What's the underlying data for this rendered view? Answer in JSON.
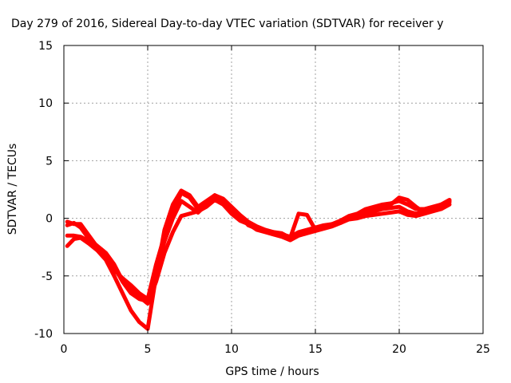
{
  "chart_data": {
    "type": "line",
    "title": "Day 279 of 2016, Sidereal Day-to-day VTEC variation (SDTVAR) for receiver y",
    "xlabel": "GPS time / hours",
    "ylabel": "SDTVAR / TECUs",
    "xlim": [
      0,
      25
    ],
    "ylim": [
      -10,
      15
    ],
    "x_ticks": [
      "0",
      "5",
      "10",
      "15",
      "20",
      "25"
    ],
    "y_ticks": [
      "-10",
      "-5",
      "0",
      "5",
      "10",
      "15"
    ],
    "grid": true,
    "legend": "none",
    "line_color": "#ff0000",
    "series": [
      {
        "x": [
          0.2,
          0.6,
          1.0,
          1.5,
          2.0,
          2.5,
          3.0,
          3.5,
          4.0,
          4.5,
          5.0,
          5.5,
          6.0,
          6.5,
          7.0,
          7.5,
          8.0,
          8.5,
          9.0,
          9.5,
          10.0,
          10.5,
          11.0,
          11.5,
          12.0,
          12.5,
          13.0,
          13.5,
          14.0,
          14.5,
          15.0,
          15.5,
          16.0,
          16.5,
          17.0,
          17.5,
          18.0,
          18.5,
          19.0,
          19.5,
          20.0,
          20.5,
          21.0,
          21.5,
          22.0,
          22.5,
          23.0
        ],
        "y": [
          -0.3,
          -0.5,
          -0.5,
          -1.5,
          -2.5,
          -3.2,
          -4.2,
          -5.5,
          -6.5,
          -7.0,
          -7.2,
          -4.5,
          -2.0,
          0.0,
          1.5,
          1.0,
          0.5,
          1.2,
          1.8,
          1.4,
          0.5,
          0.0,
          -0.4,
          -0.8,
          -1.0,
          -1.2,
          -1.4,
          -1.6,
          -1.2,
          -1.0,
          -0.8,
          -0.6,
          -0.5,
          -0.3,
          0.0,
          0.2,
          0.5,
          0.6,
          0.8,
          0.9,
          1.0,
          0.6,
          0.4,
          0.6,
          0.8,
          1.0,
          1.4
        ]
      },
      {
        "x": [
          0.2,
          0.6,
          1.0,
          1.5,
          2.0,
          2.5,
          3.0,
          3.5,
          4.0,
          4.5,
          5.0,
          5.5,
          6.0,
          6.5,
          7.0,
          7.5,
          8.0,
          8.5,
          9.0,
          9.5,
          10.0,
          10.5,
          11.0,
          11.5,
          12.0,
          12.5,
          13.0,
          13.5,
          14.0,
          14.5,
          15.0,
          15.5,
          16.0,
          16.5,
          17.0,
          17.5,
          18.0,
          18.5,
          19.0,
          19.5,
          20.0,
          20.5,
          21.0,
          21.5,
          22.0,
          22.5,
          23.0
        ],
        "y": [
          -1.5,
          -1.5,
          -1.6,
          -2.0,
          -2.6,
          -3.4,
          -4.5,
          -5.2,
          -5.8,
          -6.5,
          -7.0,
          -4.0,
          -1.5,
          0.5,
          2.2,
          1.8,
          0.8,
          1.4,
          2.0,
          1.5,
          0.8,
          0.2,
          -0.6,
          -0.9,
          -1.1,
          -1.3,
          -1.5,
          -1.8,
          -1.4,
          -1.2,
          -0.9,
          -0.7,
          -0.5,
          -0.2,
          0.2,
          0.4,
          0.8,
          1.0,
          1.2,
          1.3,
          1.5,
          1.2,
          0.8,
          0.8,
          1.0,
          1.2,
          1.5
        ]
      },
      {
        "x": [
          0.2,
          0.6,
          1.0,
          1.5,
          2.0,
          2.5,
          3.0,
          3.5,
          4.0,
          4.5,
          5.0,
          5.5,
          6.0,
          6.5,
          7.0,
          7.5,
          8.0,
          8.5,
          9.0,
          9.5,
          10.0,
          10.5,
          11.0,
          11.5,
          12.0,
          12.5,
          13.0,
          13.5,
          14.0,
          14.5,
          15.0,
          15.5,
          16.0,
          16.5,
          17.0,
          17.5,
          18.0,
          18.5,
          19.0,
          19.5,
          20.0,
          20.5,
          21.0,
          21.5,
          22.0,
          22.5,
          23.0
        ],
        "y": [
          -2.4,
          -1.8,
          -1.7,
          -2.2,
          -2.8,
          -3.6,
          -5.0,
          -6.5,
          -8.0,
          -9.0,
          -9.6,
          -5.0,
          -1.0,
          1.2,
          2.4,
          2.0,
          1.0,
          1.5,
          2.0,
          1.7,
          1.0,
          0.3,
          -0.3,
          -0.7,
          -1.0,
          -1.2,
          -1.3,
          -1.7,
          0.4,
          0.3,
          -1.0,
          -0.8,
          -0.6,
          -0.4,
          0.0,
          0.3,
          0.6,
          0.9,
          1.1,
          1.2,
          1.8,
          1.6,
          1.0,
          0.5,
          0.8,
          1.2,
          1.6
        ]
      },
      {
        "x": [
          0.2,
          0.6,
          1.0,
          1.5,
          2.0,
          2.5,
          3.0,
          3.5,
          4.0,
          4.5,
          5.0,
          5.5,
          6.0,
          6.5,
          7.0,
          7.5,
          8.0,
          8.5,
          9.0,
          9.5,
          10.0,
          10.5,
          11.0,
          11.5,
          12.0,
          12.5,
          13.0,
          13.5,
          14.0,
          14.5,
          15.0,
          15.5,
          16.0,
          16.5,
          17.0,
          17.5,
          18.0,
          18.5,
          19.0,
          19.5,
          20.0,
          20.5,
          21.0,
          21.5,
          22.0,
          22.5,
          23.0
        ],
        "y": [
          -0.6,
          -0.4,
          -0.8,
          -1.8,
          -2.4,
          -3.0,
          -4.0,
          -5.4,
          -6.2,
          -6.8,
          -7.4,
          -5.5,
          -3.0,
          -1.2,
          0.2,
          0.4,
          0.6,
          1.0,
          1.6,
          1.2,
          0.4,
          -0.2,
          -0.5,
          -1.0,
          -1.2,
          -1.4,
          -1.6,
          -1.9,
          -1.5,
          -1.3,
          -1.1,
          -0.9,
          -0.7,
          -0.4,
          -0.1,
          0.0,
          0.2,
          0.3,
          0.4,
          0.5,
          0.6,
          0.3,
          0.2,
          0.4,
          0.6,
          0.8,
          1.2
        ]
      }
    ]
  }
}
